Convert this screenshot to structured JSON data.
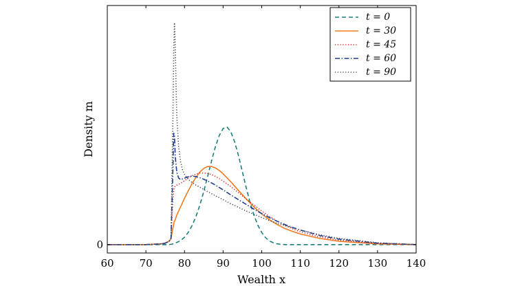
{
  "chart_data": {
    "type": "line",
    "title": "",
    "xlabel": "Wealth x",
    "ylabel": "Density m",
    "xlim": [
      60,
      140
    ],
    "ylim": [
      -0.0023,
      0.0655
    ],
    "x_ticks": [
      "60",
      "70",
      "80",
      "90",
      "100",
      "110",
      "120",
      "130",
      "140"
    ],
    "y_ticks": [
      "0"
    ],
    "grid": false,
    "legend_position": "top-right",
    "series": [
      {
        "name": "t = 0",
        "color": "#1b7d7d",
        "dash": "dashed",
        "x": [
          60,
          70,
          75,
          76,
          77,
          78,
          79,
          80,
          81,
          82,
          83,
          84,
          85,
          86,
          87,
          88,
          89,
          90,
          91,
          92,
          93,
          94,
          95,
          96,
          97,
          98,
          99,
          100,
          101,
          102,
          103,
          104,
          105,
          106,
          108,
          110,
          115,
          120,
          130,
          140
        ],
        "y": [
          0,
          0,
          0,
          0,
          0.0002,
          0.0006,
          0.0011,
          0.002,
          0.0034,
          0.0053,
          0.0078,
          0.0109,
          0.0146,
          0.0187,
          0.0229,
          0.0268,
          0.0299,
          0.0318,
          0.0322,
          0.0309,
          0.0281,
          0.0243,
          0.0199,
          0.0155,
          0.0114,
          0.008,
          0.0053,
          0.0033,
          0.0019,
          0.001,
          0.0005,
          0.0002,
          0.0001,
          0,
          0,
          0,
          0,
          0,
          0,
          0
        ]
      },
      {
        "name": "t = 30",
        "color": "#f07a1e",
        "dash": "solid",
        "x": [
          60,
          70,
          74,
          75,
          76,
          76.5,
          77,
          77.3,
          77.6,
          78,
          79,
          80,
          81,
          82,
          83,
          84,
          85,
          86,
          87,
          88,
          89,
          90,
          92,
          94,
          96,
          98,
          100,
          102,
          104,
          106,
          108,
          110,
          115,
          120,
          130,
          140
        ],
        "y": [
          0,
          0,
          0.0002,
          0.0004,
          0.0009,
          0.0016,
          0.0045,
          0.0062,
          0.0068,
          0.0081,
          0.0104,
          0.0127,
          0.0148,
          0.0168,
          0.0185,
          0.0199,
          0.0209,
          0.0214,
          0.0214,
          0.021,
          0.0203,
          0.0194,
          0.0172,
          0.0148,
          0.0125,
          0.0103,
          0.0084,
          0.0068,
          0.0055,
          0.0044,
          0.0036,
          0.0029,
          0.0017,
          0.0009,
          0.0002,
          0
        ]
      },
      {
        "name": "t = 45",
        "color": "#d4231e",
        "dash": "dotted",
        "x": [
          60,
          70,
          74,
          75,
          76,
          76.5,
          77,
          77.3,
          77.6,
          78,
          79,
          80,
          81,
          82,
          83,
          84,
          85,
          86,
          87,
          88,
          89,
          90,
          92,
          94,
          96,
          98,
          100,
          102,
          104,
          106,
          108,
          110,
          115,
          120,
          130,
          140
        ],
        "y": [
          0,
          0,
          0.0002,
          0.0004,
          0.0009,
          0.0016,
          0.0125,
          0.0155,
          0.0161,
          0.0163,
          0.0168,
          0.0175,
          0.0183,
          0.0189,
          0.0193,
          0.0196,
          0.0196,
          0.0195,
          0.0192,
          0.0187,
          0.0181,
          0.0174,
          0.0159,
          0.0142,
          0.0125,
          0.0108,
          0.0092,
          0.0077,
          0.0064,
          0.0053,
          0.0043,
          0.0035,
          0.0021,
          0.0012,
          0.0003,
          0
        ]
      },
      {
        "name": "t = 60",
        "color": "#1f3c91",
        "dash": "dashdot",
        "x": [
          60,
          70,
          74,
          75,
          76,
          76.5,
          77,
          77.2,
          77.4,
          77.6,
          78,
          78.5,
          79,
          80,
          81,
          82,
          83,
          84,
          85,
          86,
          87,
          88,
          90,
          92,
          94,
          96,
          98,
          100,
          102,
          104,
          106,
          108,
          110,
          115,
          120,
          130,
          140
        ],
        "y": [
          0,
          0,
          0.0002,
          0.0004,
          0.0009,
          0.0017,
          0.0205,
          0.0305,
          0.0298,
          0.0242,
          0.0198,
          0.0182,
          0.0178,
          0.0182,
          0.0186,
          0.0188,
          0.0186,
          0.0183,
          0.0179,
          0.0174,
          0.0169,
          0.0163,
          0.015,
          0.0136,
          0.0123,
          0.011,
          0.0097,
          0.0085,
          0.0074,
          0.0064,
          0.0055,
          0.0047,
          0.004,
          0.0025,
          0.0015,
          0.0004,
          0
        ]
      },
      {
        "name": "t = 90",
        "color": "#454545",
        "dash": "dotted",
        "x": [
          60,
          70,
          74,
          75,
          76,
          76.5,
          77,
          77.2,
          77.4,
          77.6,
          77.8,
          78,
          78.5,
          79,
          79.5,
          80,
          81,
          82,
          83,
          84,
          85,
          86,
          88,
          90,
          92,
          94,
          96,
          98,
          100,
          102,
          104,
          106,
          108,
          110,
          115,
          120,
          130,
          140
        ],
        "y": [
          0,
          0,
          0.0002,
          0.0004,
          0.0009,
          0.0017,
          0.035,
          0.0525,
          0.0608,
          0.0545,
          0.0442,
          0.0352,
          0.0265,
          0.0226,
          0.0204,
          0.0192,
          0.0178,
          0.017,
          0.0163,
          0.0157,
          0.0151,
          0.0145,
          0.0134,
          0.0123,
          0.0112,
          0.0102,
          0.0092,
          0.0083,
          0.0074,
          0.0066,
          0.0058,
          0.0052,
          0.0046,
          0.004,
          0.0027,
          0.0017,
          0.0005,
          0
        ]
      }
    ]
  }
}
